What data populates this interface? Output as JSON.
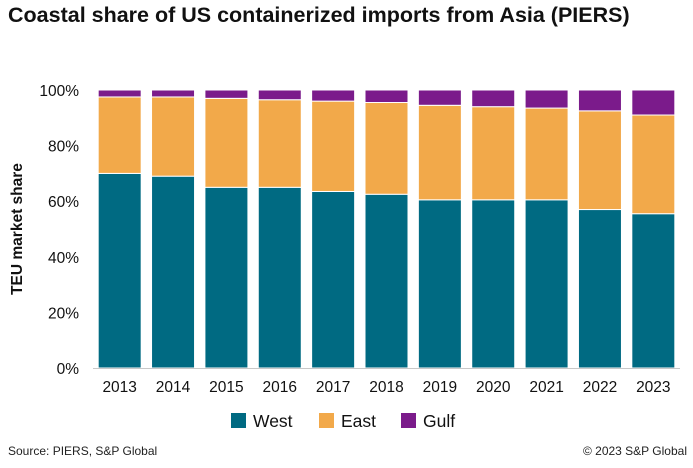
{
  "chart_data": {
    "type": "bar",
    "stacked": true,
    "title": "Coastal share of US containerized imports from Asia (PIERS)",
    "xlabel": "",
    "ylabel": "TEU market share",
    "ylim": [
      0,
      100
    ],
    "yticks": [
      "0%",
      "20%",
      "40%",
      "60%",
      "80%",
      "100%"
    ],
    "categories": [
      "2013",
      "2014",
      "2015",
      "2016",
      "2017",
      "2018",
      "2019",
      "2020",
      "2021",
      "2022",
      "2023"
    ],
    "series": [
      {
        "name": "West",
        "color": "#006a82",
        "values": [
          70,
          69,
          65,
          65,
          63.5,
          62.5,
          60.5,
          60.5,
          60.5,
          57,
          55.5
        ]
      },
      {
        "name": "East",
        "color": "#f2a94a",
        "values": [
          27.5,
          28.5,
          32,
          31.5,
          32.5,
          33,
          34,
          33.5,
          33,
          35.5,
          35.5
        ]
      },
      {
        "name": "Gulf",
        "color": "#7b1b8b",
        "values": [
          2.5,
          2.5,
          3,
          3.5,
          4,
          4.5,
          5.5,
          6,
          6.5,
          7.5,
          9
        ]
      }
    ],
    "legend": "bottom",
    "grid": false
  },
  "footer": {
    "source": "Source: PIERS, S&P Global",
    "copyright": "© 2023 S&P Global"
  }
}
